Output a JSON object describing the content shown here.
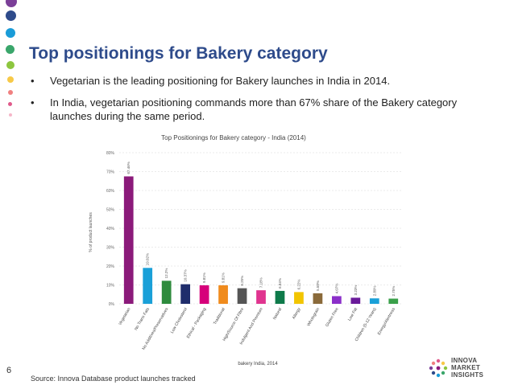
{
  "slide": {
    "title": "Top positionings for Bakery category",
    "bullets": [
      "Vegetarian is the leading positioning for Bakery launches in India in 2014.",
      "In India, vegetarian positioning commands more than 67% share of the Bakery category launches during the same period."
    ],
    "bullet_symbol": "•",
    "page_number": "6",
    "source": "Source: Innova Database product launches tracked",
    "logo_lines": [
      "INNOVA",
      "MARKET",
      "INSIGHTS"
    ],
    "dot_colors": [
      "#7b3f98",
      "#2e4b8b",
      "#1a9cd8",
      "#3aa66b",
      "#8dc63f",
      "#f7c948",
      "#f08080",
      "#e05a8a",
      "#f5b6c8"
    ]
  },
  "chart_data": {
    "type": "bar",
    "title": "Top Positionings for Bakery category - India (2014)",
    "xlabel": "bakery India, 2014",
    "ylabel": "% of product launches",
    "ylim": [
      0,
      80
    ],
    "yticks": [
      "0%",
      "10%",
      "20%",
      "30%",
      "40%",
      "50%",
      "60%",
      "70%",
      "80%"
    ],
    "grid": true,
    "categories": [
      "Vegetarian",
      "No Trans Fats",
      "No Additives/Preservatives",
      "Low Cholesterol",
      "Ethical - Packaging",
      "Traditional",
      "High/Source Of Fibre",
      "Indulgent And Premium",
      "Natural",
      "Allergy",
      "Wholegrain",
      "Gluten Free",
      "Low Fat",
      "Children (5-12 Years)",
      "Energy/Alertness"
    ],
    "values": [
      67.46,
      19.02,
      12.2,
      10.37,
      9.81,
      9.81,
      8.25,
      7.18,
      6.84,
      6.22,
      5.58,
      4.07,
      3.23,
      2.89,
      2.75
    ],
    "data_labels": [
      "67.46%",
      "19.02%",
      "12.2%",
      "10.37%",
      "9.81%",
      "9.81%",
      "8.25%",
      "7.18%",
      "6.84%",
      "6.22%",
      "5.58%",
      "4.07%",
      "3.23%",
      "2.89%",
      "2.75%"
    ],
    "colors": [
      "#8b1a7a",
      "#1aa0d8",
      "#2e8b3d",
      "#1f2d6b",
      "#d6007a",
      "#f08b1d",
      "#555555",
      "#e0348f",
      "#0e7a4a",
      "#f2c500",
      "#8a6a3a",
      "#8b2fc9",
      "#6a1b9a",
      "#1aa0d8",
      "#3aa04a"
    ]
  }
}
